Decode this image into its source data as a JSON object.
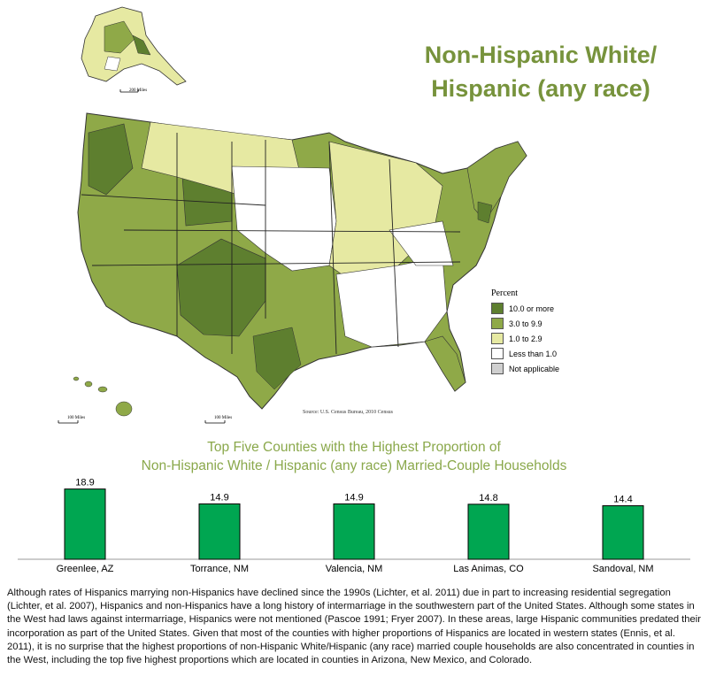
{
  "map": {
    "title_line1": "Non-Hispanic White/",
    "title_line2": "Hispanic (any race)",
    "source": "Source: U.S. Census Bureau, 2010 Census",
    "scale_alaska": "200 Miles",
    "scale_hawaii": "100 Miles",
    "scale_us": "100 Miles",
    "legend": {
      "heading": "Percent",
      "items": [
        {
          "label": "10.0 or more",
          "color": "#5e7f2f"
        },
        {
          "label": "3.0 to 9.9",
          "color": "#8fa948"
        },
        {
          "label": "1.0 to 2.9",
          "color": "#e6e9a2"
        },
        {
          "label": "Less than 1.0",
          "color": "#ffffff"
        },
        {
          "label": "Not applicable",
          "color": "#cfcfcf"
        }
      ]
    }
  },
  "chart_title_line1": "Top Five Counties with the Highest Proportion of",
  "chart_title_line2": "Non-Hispanic White / Hispanic (any race) Married-Couple Households",
  "chart_data": {
    "type": "bar",
    "categories": [
      "Greenlee, AZ",
      "Torrance, NM",
      "Valencia, NM",
      "Las Animas, CO",
      "Sandoval, NM"
    ],
    "values": [
      18.9,
      14.9,
      14.9,
      14.8,
      14.4
    ],
    "value_labels": [
      "18.9",
      "14.9",
      "14.9",
      "14.8",
      "14.4"
    ],
    "bar_color": "#00a651",
    "ylim": [
      0,
      20
    ],
    "grid": false
  },
  "paragraph": "Although rates of Hispanics marrying non-Hispanics have declined since the 1990s (Lichter, et al. 2011) due in part to increasing residential segregation (Lichter, et al. 2007), Hispanics and non-Hispanics have a long history of intermarriage in the southwestern part of the United States. Although some states in the West had laws against intermarriage, Hispanics were not mentioned (Pascoe 1991; Fryer 2007). In these areas, large Hispanic communities predated their incorporation as part of the United States. Given that most of the counties with higher proportions of Hispanics are located in western states (Ennis, et al. 2011), it is no surprise that the highest proportions of non-Hispanic White/Hispanic (any race) married couple households are also concentrated in counties in the West, including the top five highest proportions which are located in counties in Arizona, New Mexico, and Colorado."
}
